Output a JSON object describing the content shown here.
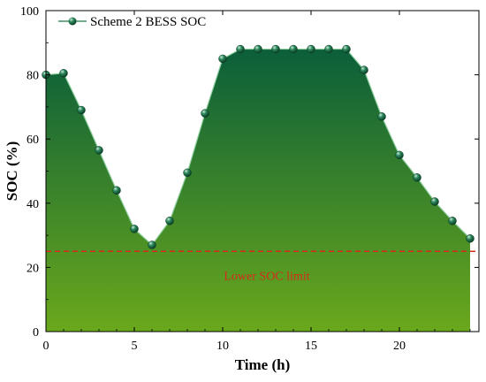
{
  "chart_data": {
    "type": "area",
    "title": "",
    "xlabel": "Time (h)",
    "ylabel": "SOC (%)",
    "xlim": [
      0,
      24.5
    ],
    "ylim": [
      0,
      100
    ],
    "xticks": [
      0,
      5,
      10,
      15,
      20
    ],
    "yticks": [
      0,
      20,
      40,
      60,
      80,
      100
    ],
    "grid": false,
    "legend_position": "top-left",
    "series": [
      {
        "name": "Scheme 2 BESS SOC",
        "x": [
          0,
          1,
          2,
          3,
          4,
          5,
          6,
          7,
          8,
          9,
          10,
          11,
          12,
          13,
          14,
          15,
          16,
          17,
          18,
          19,
          20,
          21,
          22,
          23,
          24
        ],
        "y": [
          80,
          80.5,
          69,
          56.5,
          44,
          32,
          27,
          34.5,
          49.5,
          68,
          85,
          88,
          88,
          88,
          88,
          88,
          88,
          88,
          81.5,
          67,
          55,
          48,
          40.5,
          34.5,
          29
        ],
        "color": "#1e7a4a"
      }
    ],
    "reference_lines": [
      {
        "y": 25,
        "label": "Lower SOC limit",
        "color": "#d62a1a",
        "style": "dashed"
      }
    ],
    "fill_gradient": {
      "top": "#0b5e3a",
      "bottom": "#6aa81c"
    }
  }
}
